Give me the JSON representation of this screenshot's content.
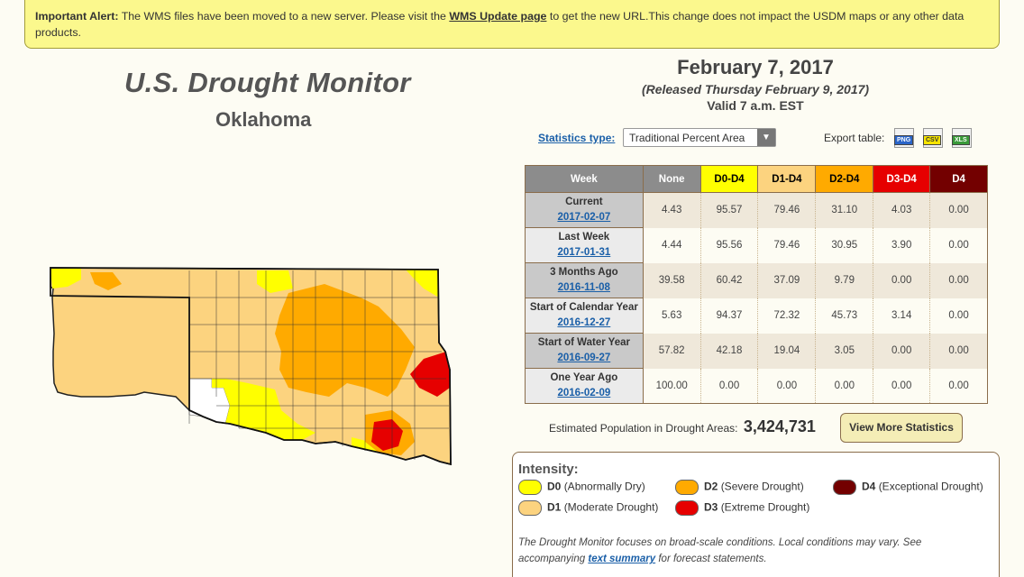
{
  "alert": {
    "label": "Important Alert:",
    "text1": "The WMS files have been moved to a new server. Please visit the",
    "link": "WMS Update page",
    "text2": "to get the new URL.This change does not impact the USDM maps or any other data products."
  },
  "header": {
    "title": "U.S. Drought Monitor",
    "state": "Oklahoma",
    "date": "February 7, 2017",
    "released": "(Released Thursday February 9, 2017)",
    "valid": "Valid 7 a.m. EST"
  },
  "controls": {
    "stats_label": "Statistics type:",
    "stats_value": "Traditional Percent Area",
    "export_label": "Export table:",
    "export_png": "PNG",
    "export_csv": "CSV",
    "export_xls": "XLS"
  },
  "table": {
    "headers": [
      "Week",
      "None",
      "D0-D4",
      "D1-D4",
      "D2-D4",
      "D3-D4",
      "D4"
    ],
    "header_colors": [
      "#8c8c8c",
      "#8c8c8c",
      "#ffff00",
      "#fcd37f",
      "#ffaa00",
      "#e60000",
      "#730000"
    ],
    "header_text_colors": [
      "#ffffff",
      "#ffffff",
      "#000000",
      "#000000",
      "#000000",
      "#ffffff",
      "#ffffff"
    ],
    "rows": [
      {
        "week": "Current",
        "date": "2017-02-07",
        "values": [
          "4.43",
          "95.57",
          "79.46",
          "31.10",
          "4.03",
          "0.00"
        ]
      },
      {
        "week": "Last Week",
        "date": "2017-01-31",
        "values": [
          "4.44",
          "95.56",
          "79.46",
          "30.95",
          "3.90",
          "0.00"
        ]
      },
      {
        "week": "3 Months Ago",
        "date": "2016-11-08",
        "values": [
          "39.58",
          "60.42",
          "37.09",
          "9.79",
          "0.00",
          "0.00"
        ]
      },
      {
        "week": "Start of Calendar Year",
        "date": "2016-12-27",
        "values": [
          "5.63",
          "94.37",
          "72.32",
          "45.73",
          "3.14",
          "0.00"
        ]
      },
      {
        "week": "Start of Water Year",
        "date": "2016-09-27",
        "values": [
          "57.82",
          "42.18",
          "19.04",
          "3.05",
          "0.00",
          "0.00"
        ]
      },
      {
        "week": "One Year Ago",
        "date": "2016-02-09",
        "values": [
          "100.00",
          "0.00",
          "0.00",
          "0.00",
          "0.00",
          "0.00"
        ]
      }
    ]
  },
  "population": {
    "label": "Estimated Population in Drought Areas:",
    "value": "3,424,731",
    "button": "View More Statistics"
  },
  "legend": {
    "title": "Intensity:",
    "items": [
      {
        "code": "D0",
        "desc": "(Abnormally Dry)",
        "color": "#ffff00"
      },
      {
        "code": "D1",
        "desc": "(Moderate Drought)",
        "color": "#fcd37f"
      },
      {
        "code": "D2",
        "desc": "(Severe Drought)",
        "color": "#ffaa00"
      },
      {
        "code": "D3",
        "desc": "(Extreme Drought)",
        "color": "#e60000"
      },
      {
        "code": "D4",
        "desc": "(Exceptional Drought)",
        "color": "#730000"
      }
    ],
    "note1": "The Drought Monitor focuses on broad-scale conditions. Local conditions may vary. See accompanying",
    "note_link": "text summary",
    "note2": "for forecast statements."
  }
}
